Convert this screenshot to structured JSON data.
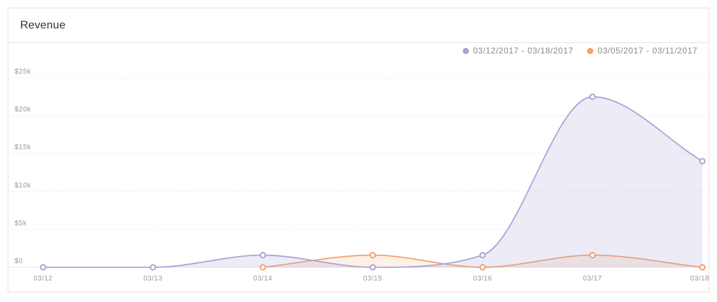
{
  "card": {
    "title": "Revenue"
  },
  "colors": {
    "current": "#a9a4d6",
    "previous": "#f2a06c"
  },
  "chart_data": {
    "type": "area",
    "title": "Revenue",
    "xlabel": "",
    "ylabel": "",
    "categories": [
      "03/12",
      "03/13",
      "03/14",
      "03/15",
      "03/16",
      "03/17",
      "03/18"
    ],
    "ylim": [
      0,
      25000
    ],
    "yticks": [
      0,
      5000,
      10000,
      15000,
      20000,
      25000
    ],
    "ytick_labels": [
      "$0",
      "$5k",
      "$10k",
      "$15k",
      "$20k",
      "$25k"
    ],
    "grid": true,
    "legend_position": "top-right",
    "series": [
      {
        "name": "03/12/2017 - 03/18/2017",
        "color": "#a9a4d6",
        "values": [
          0,
          0,
          1600,
          0,
          1600,
          22500,
          14000
        ]
      },
      {
        "name": "03/05/2017 - 03/11/2017",
        "color": "#f2a06c",
        "values": [
          null,
          null,
          0,
          1600,
          0,
          1600,
          0
        ]
      }
    ]
  }
}
